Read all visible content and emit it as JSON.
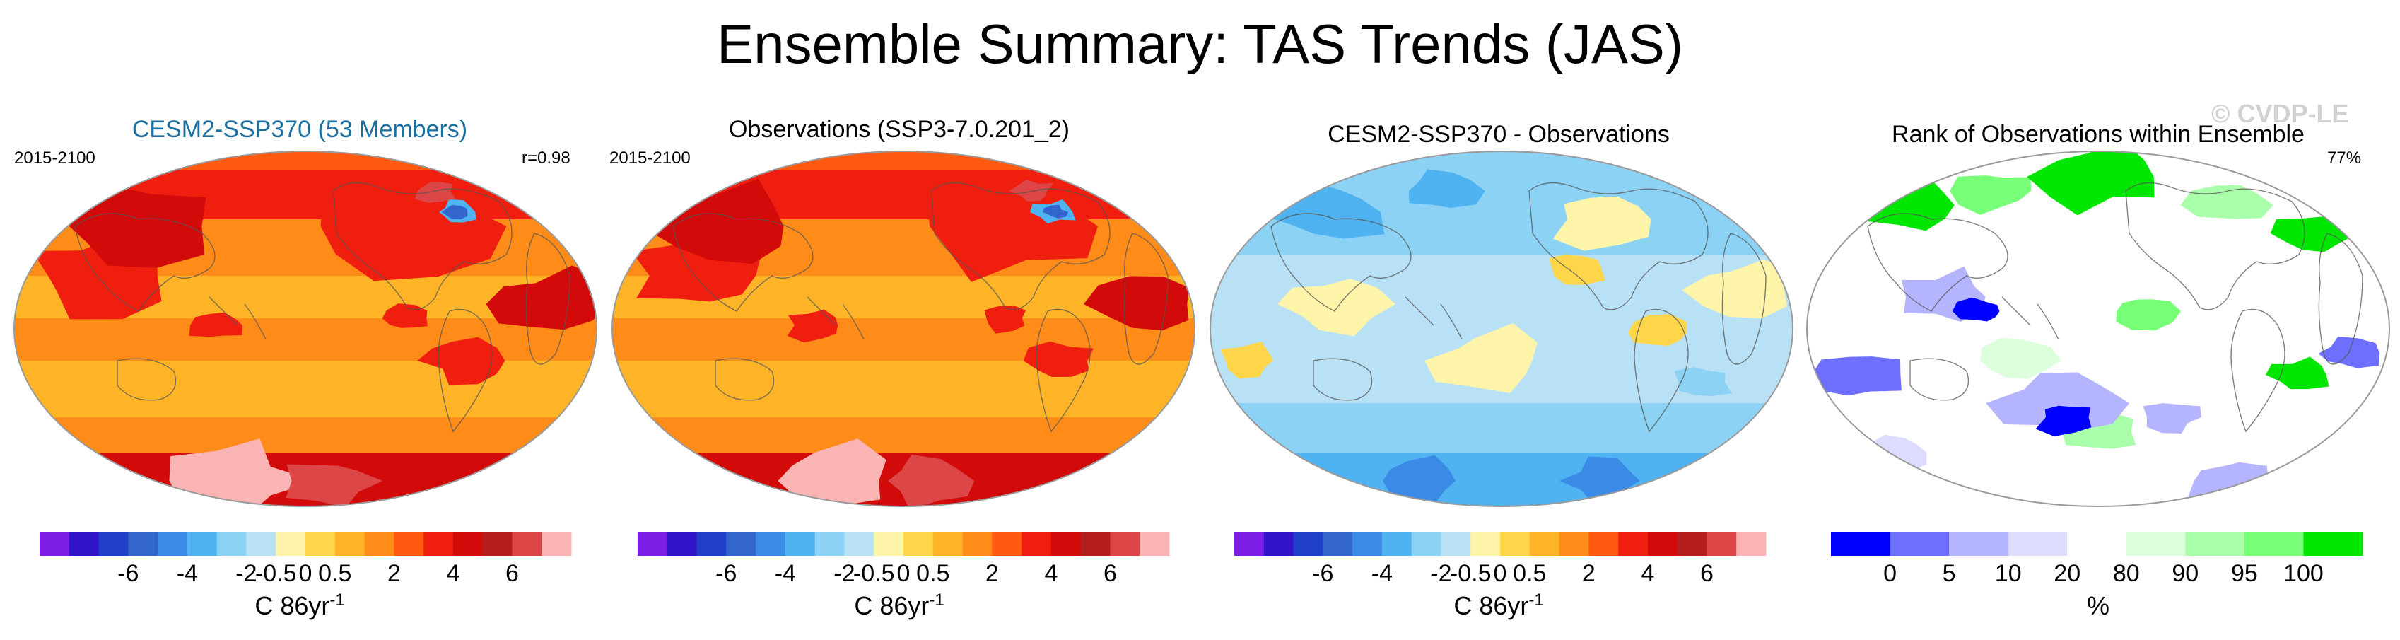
{
  "figure": {
    "title": "Ensemble Summary: TAS Trends (JAS)",
    "watermark": "© CVDP-LE"
  },
  "colors": {
    "diverging": [
      "#7d1ee6",
      "#3214c8",
      "#1f3fc8",
      "#3366cc",
      "#3a8ae6",
      "#4fb3f2",
      "#8cd2f5",
      "#b9e1f5",
      "#fff5aa",
      "#ffd54a",
      "#ffb428",
      "#ff8c19",
      "#ff5a0f",
      "#f01e0f",
      "#d20a0a",
      "#b41e1e",
      "#dc4646",
      "#fab4b4"
    ],
    "rank": [
      "#0000ff",
      "#6e6eff",
      "#b4b4ff",
      "#dcdcff",
      "#ffffff",
      "#dcffdc",
      "#aaffaa",
      "#78ff78",
      "#00e600"
    ],
    "panel_titles": [
      "#1a6ea0",
      "#000000",
      "#000000",
      "#000000"
    ]
  },
  "panels": [
    {
      "title": "CESM2-SSP370 (53 Members)",
      "left_label": "2015-2100",
      "right_label": "r=0.98",
      "map": "warm"
    },
    {
      "title": "Observations (SSP3-7.0.201_2)",
      "left_label": "2015-2100",
      "right_label": "",
      "map": "warm"
    },
    {
      "title": "CESM2-SSP370 - Observations",
      "left_label": "",
      "right_label": "",
      "map": "diff"
    },
    {
      "title": "Rank of Observations within Ensemble",
      "left_label": "",
      "right_label": "77%",
      "map": "rank"
    }
  ],
  "colorbars": [
    {
      "ticks": [
        "-6",
        "-4",
        "-2",
        "-0.5",
        "0",
        "0.5",
        "2",
        "4",
        "6"
      ],
      "unit": "C 86yr",
      "unit_exp": "-1"
    },
    {
      "ticks": [
        "-6",
        "-4",
        "-2",
        "-0.5",
        "0",
        "0.5",
        "2",
        "4",
        "6"
      ],
      "unit": "C 86yr",
      "unit_exp": "-1"
    },
    {
      "ticks": [
        "-6",
        "-4",
        "-2",
        "-0.5",
        "0",
        "0.5",
        "2",
        "4",
        "6"
      ],
      "unit": "C 86yr",
      "unit_exp": "-1"
    },
    {
      "ticks": [
        "0",
        "5",
        "10",
        "20",
        "80",
        "90",
        "95",
        "100"
      ],
      "unit": "%",
      "unit_exp": ""
    }
  ],
  "chart_data": [
    {
      "type": "heatmap",
      "title": "CESM2-SSP370 (53 Members)",
      "subtitle": "2015-2100",
      "annotation": "r=0.98",
      "projection": "Robinson",
      "xlabel": "",
      "ylabel": "",
      "color_levels": [
        -6,
        -5,
        -4,
        -3,
        -2,
        -1,
        -0.5,
        0,
        0.5,
        1,
        2,
        3,
        4,
        5,
        6
      ],
      "units": "C 86yr-1"
    },
    {
      "type": "heatmap",
      "title": "Observations (SSP3-7.0.201_2)",
      "subtitle": "2015-2100",
      "projection": "Robinson",
      "xlabel": "",
      "ylabel": "",
      "color_levels": [
        -6,
        -5,
        -4,
        -3,
        -2,
        -1,
        -0.5,
        0,
        0.5,
        1,
        2,
        3,
        4,
        5,
        6
      ],
      "units": "C 86yr-1"
    },
    {
      "type": "heatmap",
      "title": "CESM2-SSP370 - Observations",
      "projection": "Robinson",
      "xlabel": "",
      "ylabel": "",
      "color_levels": [
        -6,
        -5,
        -4,
        -3,
        -2,
        -1,
        -0.5,
        0,
        0.5,
        1,
        2,
        3,
        4,
        5,
        6
      ],
      "units": "C 86yr-1"
    },
    {
      "type": "heatmap",
      "title": "Rank of Observations within Ensemble",
      "annotation": "77%",
      "projection": "Robinson",
      "xlabel": "",
      "ylabel": "",
      "color_levels": [
        0,
        5,
        10,
        20,
        80,
        90,
        95,
        100
      ],
      "units": "%"
    }
  ]
}
